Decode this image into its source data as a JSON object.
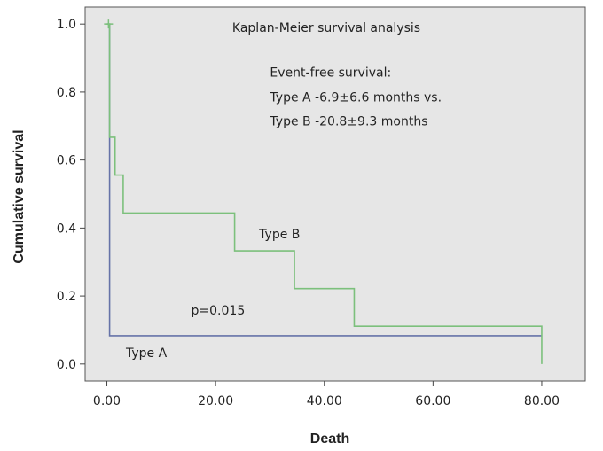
{
  "chart_data": {
    "type": "line",
    "title": "Kaplan-Meier survival analysis",
    "xlabel": "Death",
    "ylabel": "Cumulative survival",
    "xlim": [
      -4,
      88
    ],
    "ylim": [
      -0.05,
      1.05
    ],
    "xticks": [
      0,
      20,
      40,
      60,
      80
    ],
    "xtick_labels": [
      "0.00",
      "20.00",
      "40.00",
      "60.00",
      "80.00"
    ],
    "yticks": [
      0.0,
      0.2,
      0.4,
      0.6,
      0.8,
      1.0
    ],
    "ytick_labels": [
      "0.0",
      "0.2",
      "0.4",
      "0.6",
      "0.8",
      "1.0"
    ],
    "grid": false,
    "background": "#e6e6e6",
    "series": [
      {
        "name": "Type A",
        "color": "#6673a8",
        "step": true,
        "x": [
          0,
          0.5,
          80
        ],
        "y": [
          1.0,
          0.083,
          0.083
        ]
      },
      {
        "name": "Type B",
        "color": "#7cc07c",
        "step": true,
        "x": [
          0,
          0.5,
          1.5,
          3,
          23.5,
          34.5,
          45.5,
          80,
          80
        ],
        "y": [
          1.0,
          0.667,
          0.556,
          0.444,
          0.333,
          0.222,
          0.111,
          0.111,
          0.0
        ]
      }
    ],
    "censor_marks": [
      {
        "series": "Type B",
        "x": 0.3,
        "y": 1.0
      }
    ],
    "annotations": [
      {
        "id": "event_free_title",
        "text": "Event-free survival:",
        "x": 30,
        "y": 0.845
      },
      {
        "id": "type_a_stat",
        "text": "Type A -6.9±6.6 months vs.",
        "x": 30,
        "y": 0.772
      },
      {
        "id": "type_b_stat",
        "text": "Type B -20.8±9.3 months",
        "x": 30,
        "y": 0.702
      },
      {
        "id": "type_b_label",
        "text": "Type B",
        "x": 28,
        "y": 0.37
      },
      {
        "id": "p_value",
        "text": "p=0.015",
        "x": 15.5,
        "y": 0.145
      },
      {
        "id": "type_a_label",
        "text": "Type A",
        "x": 3.5,
        "y": 0.02
      }
    ]
  }
}
